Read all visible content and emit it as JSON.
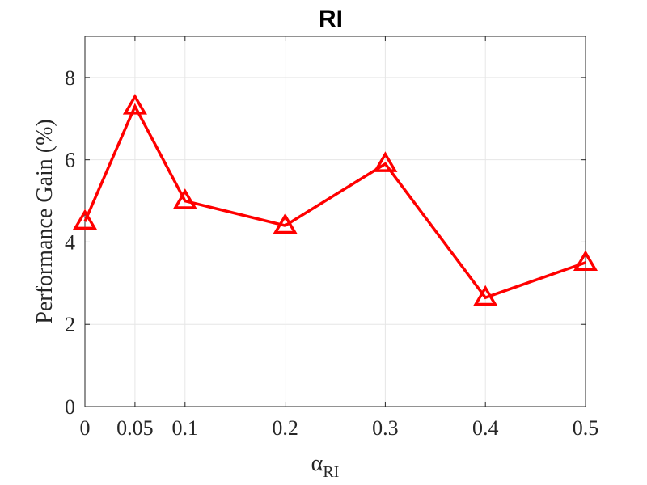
{
  "chart_data": {
    "type": "line",
    "title": "RI",
    "xlabel": {
      "base": "α",
      "subscript": "RI"
    },
    "ylabel": "Performance Gain (%)",
    "x": [
      0,
      0.05,
      0.1,
      0.2,
      0.3,
      0.4,
      0.5
    ],
    "series": [
      {
        "values": [
          4.5,
          7.3,
          5.0,
          4.4,
          5.9,
          2.65,
          3.5
        ],
        "color": "#ff0000",
        "marker": "triangle"
      }
    ],
    "xticks": [
      "0",
      "0.05",
      "0.1",
      "0.2",
      "0.3",
      "0.4",
      "0.5"
    ],
    "yticks": [
      "0",
      "2",
      "4",
      "6",
      "8"
    ],
    "xlim": [
      0,
      0.5
    ],
    "ylim": [
      0,
      9
    ],
    "grid": true
  }
}
